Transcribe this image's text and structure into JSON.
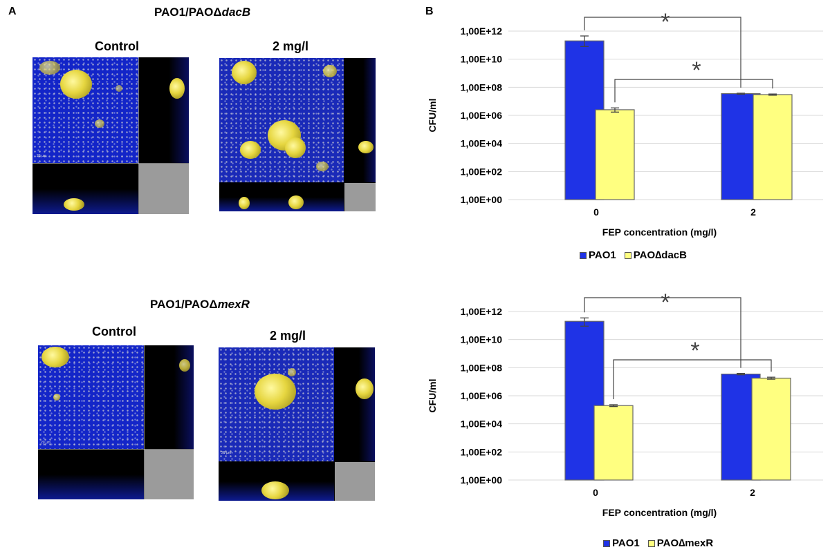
{
  "panel_a": {
    "letter": "A",
    "rows": [
      {
        "title_prefix": "PAO1/PAOΔ",
        "title_gene": "dacB",
        "conditions": [
          "Control",
          "2 mg/l"
        ]
      },
      {
        "title_prefix": "PAO1/PAOΔ",
        "title_gene": "mexR",
        "conditions": [
          "Control",
          "2 mg/l"
        ]
      }
    ]
  },
  "panel_b": {
    "letter": "B"
  },
  "chart_data": [
    {
      "type": "bar",
      "categories": [
        "0",
        "2"
      ],
      "xlabel": "FEP concentration (mg/l)",
      "ylabel": "CFU/ml",
      "y_scale": "log10",
      "ylim": [
        1,
        1000000000000.0
      ],
      "y_tick_labels": [
        "1,00E+00",
        "1,00E+02",
        "1,00E+04",
        "1,00E+06",
        "1,00E+08",
        "1,00E+10",
        "1,00E+12"
      ],
      "series": [
        {
          "name": "PAO1",
          "color": "#1f33e6",
          "values": [
            200000000000.0,
            35000000.0
          ],
          "error_low": [
            80000000000.0,
            32000000.0
          ],
          "error_high": [
            450000000000.0,
            38000000.0
          ]
        },
        {
          "name": "PAO∆dacB",
          "color": "#ffff80",
          "values": [
            2500000.0,
            30000000.0
          ],
          "error_low": [
            1700000.0,
            27000000.0
          ],
          "error_high": [
            3400000.0,
            33000000.0
          ]
        }
      ],
      "significance": [
        {
          "from": "PAO1 @ 0",
          "to": "PAO1 @ 2",
          "label": "*"
        },
        {
          "from": "PAO∆dacB @ 0",
          "to": "PAO∆dacB @ 2",
          "label": "*"
        }
      ],
      "grid": true,
      "legend_position": "bottom"
    },
    {
      "type": "bar",
      "categories": [
        "0",
        "2"
      ],
      "xlabel": "FEP concentration (mg/l)",
      "ylabel": "CFU/ml",
      "y_scale": "log10",
      "ylim": [
        1,
        1000000000000.0
      ],
      "y_tick_labels": [
        "1,00E+00",
        "1,00E+02",
        "1,00E+04",
        "1,00E+06",
        "1,00E+08",
        "1,00E+10",
        "1,00E+12"
      ],
      "series": [
        {
          "name": "PAO1",
          "color": "#1f33e6",
          "values": [
            200000000000.0,
            35000000.0
          ],
          "error_low": [
            90000000000.0,
            31000000.0
          ],
          "error_high": [
            350000000000.0,
            39000000.0
          ]
        },
        {
          "name": "PAO∆mexR",
          "color": "#ffff80",
          "values": [
            200000.0,
            18000000.0
          ],
          "error_low": [
            170000.0,
            15000000.0
          ],
          "error_high": [
            230000.0,
            21000000.0
          ]
        }
      ],
      "significance": [
        {
          "from": "PAO1 @ 0",
          "to": "PAO1 @ 2",
          "label": "*"
        },
        {
          "from": "PAO∆mexR @ 0",
          "to": "PAO∆mexR @ 2",
          "label": "*"
        }
      ],
      "grid": true,
      "legend_position": "bottom"
    }
  ]
}
